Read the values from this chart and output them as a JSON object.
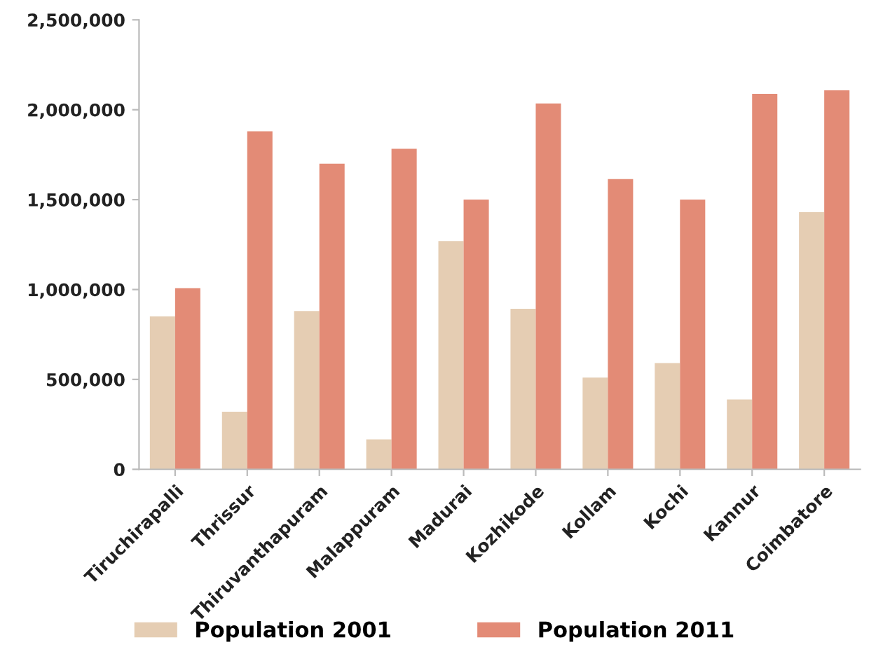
{
  "chart_data": {
    "type": "bar",
    "categories": [
      "Tiruchirapalli",
      "Thrissur",
      "Thiruvanthapuram",
      "Malappuram",
      "Madurai",
      "Kozhikode",
      "Kollam",
      "Kochi",
      "Kannur",
      "Coimbatore"
    ],
    "series": [
      {
        "name": "Population 2001",
        "color": "#e5cdb3",
        "values": [
          851000,
          320000,
          880000,
          166000,
          1270000,
          893000,
          510000,
          591000,
          388000,
          1430000
        ]
      },
      {
        "name": "Population 2011",
        "color": "#e38b76",
        "values": [
          1008000,
          1880000,
          1700000,
          1783000,
          1500000,
          2035000,
          1614000,
          1500000,
          2088000,
          2108000
        ]
      }
    ],
    "ylim": [
      0,
      2500000
    ],
    "yticks": [
      {
        "value": 0,
        "label": "0"
      },
      {
        "value": 500000,
        "label": "500,000"
      },
      {
        "value": 1000000,
        "label": "1,000,000"
      },
      {
        "value": 1500000,
        "label": "1,500,000"
      },
      {
        "value": 2000000,
        "label": "2,000,000"
      },
      {
        "value": 2500000,
        "label": "2,500,000"
      }
    ],
    "grid": false,
    "legend": "bottom"
  }
}
